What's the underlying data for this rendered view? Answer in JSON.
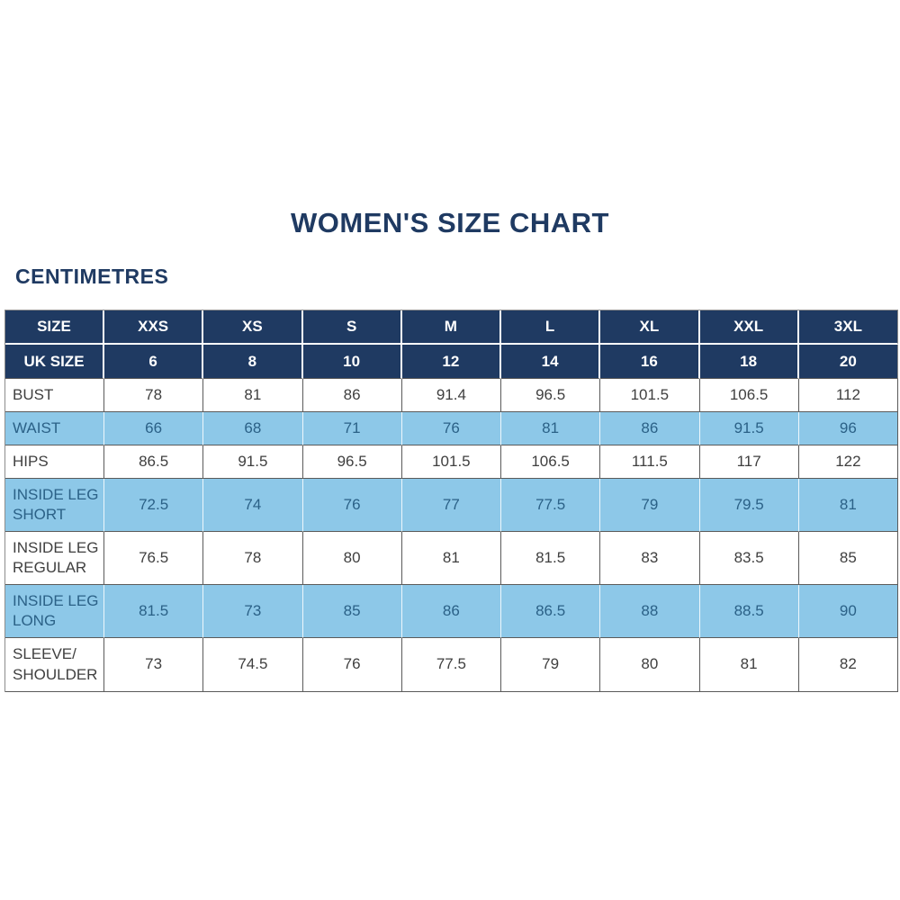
{
  "title": "WOMEN'S SIZE CHART",
  "unit_label": "CENTIMETRES",
  "colors": {
    "navy": "#1f3a62",
    "light_blue": "#8dc8e8",
    "blue_text": "#2b6187",
    "body_text": "#3f3f3f",
    "border": "#5a5a5a"
  },
  "chart_data": {
    "type": "table",
    "header_rows": [
      {
        "label": "SIZE",
        "values": [
          "XXS",
          "XS",
          "S",
          "M",
          "L",
          "XL",
          "XXL",
          "3XL"
        ]
      },
      {
        "label": "UK SIZE",
        "values": [
          "6",
          "8",
          "10",
          "12",
          "14",
          "16",
          "18",
          "20"
        ]
      }
    ],
    "rows": [
      {
        "label": "BUST",
        "values": [
          "78",
          "81",
          "86",
          "91.4",
          "96.5",
          "101.5",
          "106.5",
          "112"
        ],
        "shaded": false,
        "tall": false
      },
      {
        "label": "WAIST",
        "values": [
          "66",
          "68",
          "71",
          "76",
          "81",
          "86",
          "91.5",
          "96"
        ],
        "shaded": true,
        "tall": false
      },
      {
        "label": "HIPS",
        "values": [
          "86.5",
          "91.5",
          "96.5",
          "101.5",
          "106.5",
          "111.5",
          "117",
          "122"
        ],
        "shaded": false,
        "tall": false
      },
      {
        "label": "INSIDE LEG SHORT",
        "values": [
          "72.5",
          "74",
          "76",
          "77",
          "77.5",
          "79",
          "79.5",
          "81"
        ],
        "shaded": true,
        "tall": true
      },
      {
        "label": "INSIDE LEG REGULAR",
        "values": [
          "76.5",
          "78",
          "80",
          "81",
          "81.5",
          "83",
          "83.5",
          "85"
        ],
        "shaded": false,
        "tall": true
      },
      {
        "label": "INSIDE LEG LONG",
        "values": [
          "81.5",
          "73",
          "85",
          "86",
          "86.5",
          "88",
          "88.5",
          "90"
        ],
        "shaded": true,
        "tall": true
      },
      {
        "label": "SLEEVE/ SHOULDER",
        "values": [
          "73",
          "74.5",
          "76",
          "77.5",
          "79",
          "80",
          "81",
          "82"
        ],
        "shaded": false,
        "tall": true
      }
    ]
  }
}
